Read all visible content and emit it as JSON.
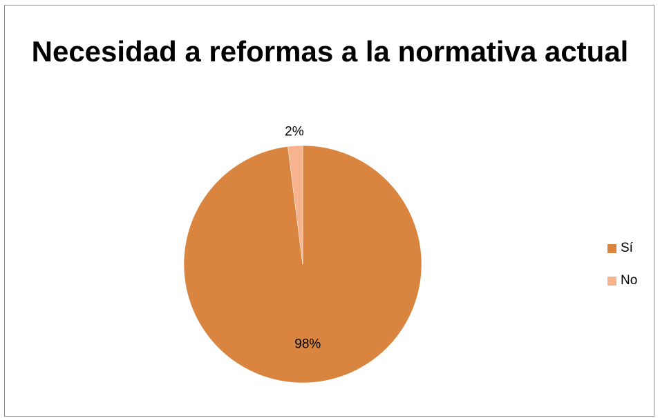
{
  "chart_data": {
    "type": "pie",
    "title": "Necesidad a reformas a la normativa actual",
    "categories": [
      "Sí",
      "No"
    ],
    "values": [
      98,
      2
    ],
    "data_labels": [
      "98%",
      "2%"
    ],
    "colors": [
      "#D9843F",
      "#F7B38E"
    ],
    "legend": {
      "placement": "right",
      "entries": [
        "Sí",
        "No"
      ]
    }
  }
}
